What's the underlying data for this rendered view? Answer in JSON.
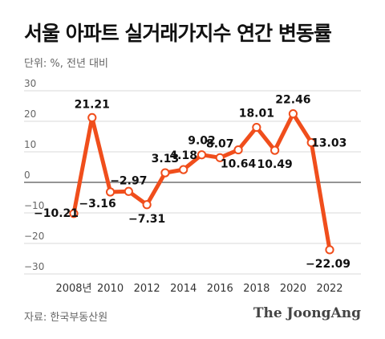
{
  "chart_data": {
    "type": "line",
    "title": "서울 아파트 실거래가지수 연간 변동률",
    "unit_note": "단위: %, 전년 대비",
    "source": "자료: 한국부동산원",
    "publisher": "The JoongAng",
    "x": [
      2008,
      2009,
      2010,
      2011,
      2012,
      2013,
      2014,
      2015,
      2016,
      2017,
      2018,
      2019,
      2020,
      2021,
      2022
    ],
    "values": [
      -10.21,
      21.21,
      -3.16,
      -2.97,
      -7.31,
      3.13,
      4.18,
      9.02,
      8.07,
      10.64,
      18.01,
      10.49,
      22.46,
      13.03,
      -22.09
    ],
    "data_labels": [
      "−10.21",
      "21.21",
      "−3.16",
      "−2.97",
      "−7.31",
      "3.13",
      "4.18",
      "9.02",
      "8.07",
      "10.64",
      "18.01",
      "10.49",
      "22.46",
      "13.03",
      "−22.09"
    ],
    "x_tick_labels": [
      "2008년",
      "2010",
      "2012",
      "2014",
      "2016",
      "2018",
      "2020",
      "2022"
    ],
    "x_tick_values": [
      2008,
      2010,
      2012,
      2014,
      2016,
      2018,
      2020,
      2022
    ],
    "y_ticks": [
      30,
      20,
      10,
      0,
      -10,
      -20,
      -30
    ],
    "y_tick_labels": [
      "30",
      "20",
      "10",
      "0",
      "−10",
      "−20",
      "−30"
    ],
    "ylim": [
      -30,
      30
    ],
    "xlim": [
      2008,
      2022
    ],
    "grid": true,
    "colors": {
      "line": "#f04e1c",
      "marker_fill": "#ffffff",
      "grid": "#cccccc",
      "zero_line": "#555555"
    }
  }
}
